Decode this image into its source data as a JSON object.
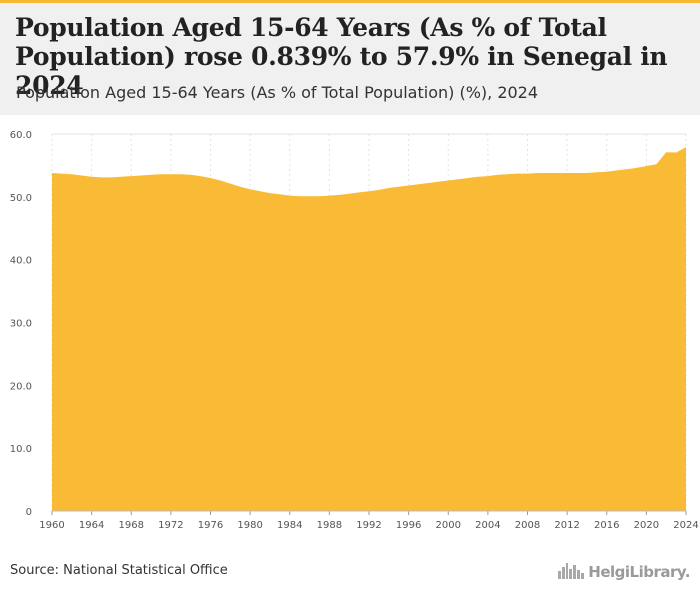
{
  "header": {
    "title": "Population Aged 15-64 Years (As % of Total Population) rose 0.839% to 57.9% in Senegal in 2024",
    "subtitle": "Population Aged 15-64 Years (As % of Total Population) (%), 2024"
  },
  "footer": {
    "source": "Source: National Statistical Office",
    "brand": "HelgiLibrary."
  },
  "colors": {
    "area": "#f9bb35",
    "grid": "#e3e3e3",
    "header_bg": "#f0f0f0",
    "accent": "#f5b82e"
  },
  "icons": {
    "brand_logo": "city-skyline-icon"
  },
  "chart_data": {
    "type": "area",
    "title": "Population Aged 15-64 Years (As % of Total Population) rose 0.839% to 57.9% in Senegal in 2024",
    "subtitle": "Population Aged 15-64 Years (As % of Total Population) (%), 2024",
    "xlabel": "",
    "ylabel": "",
    "ylim": [
      0,
      60
    ],
    "xlim": [
      1960,
      2024
    ],
    "y_ticks": [
      0,
      10,
      20,
      30,
      40,
      50,
      60
    ],
    "y_tick_labels": [
      "0",
      "10.0",
      "20.0",
      "30.0",
      "40.0",
      "50.0",
      "60.0"
    ],
    "x_ticks": [
      1960,
      1964,
      1968,
      1972,
      1976,
      1980,
      1984,
      1988,
      1992,
      1996,
      2000,
      2004,
      2008,
      2012,
      2016,
      2020,
      2024
    ],
    "x_tick_labels": [
      "1960",
      "1964",
      "1968",
      "1972",
      "1976",
      "1980",
      "1984",
      "1988",
      "1992",
      "1996",
      "2000",
      "2004",
      "2008",
      "2012",
      "2016",
      "2020",
      "2024"
    ],
    "grid": true,
    "legend": "none",
    "series": [
      {
        "x": [
          1960,
          1961,
          1962,
          1963,
          1964,
          1965,
          1966,
          1967,
          1968,
          1969,
          1970,
          1971,
          1972,
          1973,
          1974,
          1975,
          1976,
          1977,
          1978,
          1979,
          1980,
          1981,
          1982,
          1983,
          1984,
          1985,
          1986,
          1987,
          1988,
          1989,
          1990,
          1991,
          1992,
          1993,
          1994,
          1995,
          1996,
          1997,
          1998,
          1999,
          2000,
          2001,
          2002,
          2003,
          2004,
          2005,
          2006,
          2007,
          2008,
          2009,
          2010,
          2011,
          2012,
          2013,
          2014,
          2015,
          2016,
          2017,
          2018,
          2019,
          2020,
          2021,
          2022,
          2023,
          2024
        ],
        "values": [
          53.8,
          53.7,
          53.6,
          53.4,
          53.2,
          53.1,
          53.1,
          53.2,
          53.3,
          53.4,
          53.5,
          53.6,
          53.6,
          53.6,
          53.5,
          53.3,
          53.0,
          52.6,
          52.1,
          51.6,
          51.2,
          50.9,
          50.6,
          50.4,
          50.2,
          50.1,
          50.1,
          50.1,
          50.2,
          50.3,
          50.5,
          50.7,
          50.9,
          51.1,
          51.4,
          51.6,
          51.8,
          52.0,
          52.2,
          52.4,
          52.6,
          52.8,
          53.0,
          53.2,
          53.3,
          53.5,
          53.6,
          53.7,
          53.7,
          53.8,
          53.8,
          53.8,
          53.8,
          53.8,
          53.8,
          53.9,
          54.0,
          54.2,
          54.4,
          54.6,
          54.9,
          55.2,
          57.1,
          57.06,
          57.9
        ]
      }
    ]
  }
}
